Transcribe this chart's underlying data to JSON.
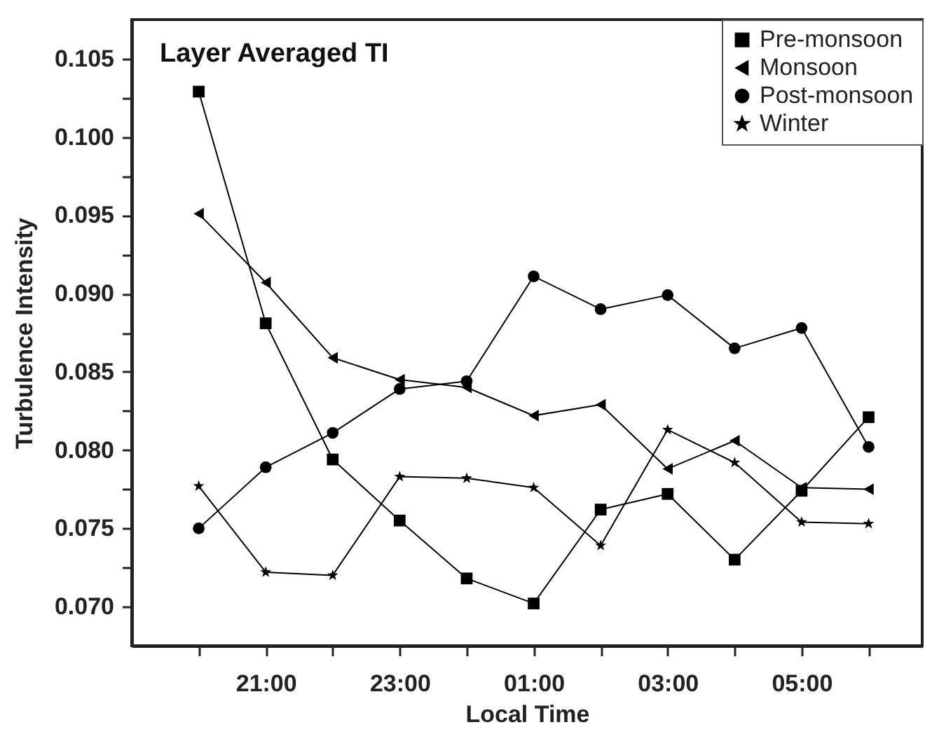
{
  "chart_data": {
    "type": "line",
    "title": "Layer Averaged TI",
    "xlabel": "Local Time",
    "ylabel": "Turbulence Intensity",
    "x": [
      "2000-01-01T20:00",
      "2000-01-01T21:00",
      "2000-01-01T22:00",
      "2000-01-01T23:00",
      "2000-01-02T00:00",
      "2000-01-02T01:00",
      "2000-01-02T02:00",
      "2000-01-02T03:00",
      "2000-01-02T04:00",
      "2000-01-02T05:00",
      "2000-01-02T06:00"
    ],
    "xlim": [
      "2000-01-01T19:00",
      "2000-01-02T06:48"
    ],
    "xticks": [
      {
        "value": "2000-01-01T20:00",
        "label": null
      },
      {
        "value": "2000-01-01T21:00",
        "label": "21:00"
      },
      {
        "value": "2000-01-01T22:00",
        "label": null
      },
      {
        "value": "2000-01-01T23:00",
        "label": "23:00"
      },
      {
        "value": "2000-01-02T00:00",
        "label": null
      },
      {
        "value": "2000-01-02T01:00",
        "label": "01:00"
      },
      {
        "value": "2000-01-02T02:00",
        "label": null
      },
      {
        "value": "2000-01-02T03:00",
        "label": "03:00"
      },
      {
        "value": "2000-01-02T04:00",
        "label": null
      },
      {
        "value": "2000-01-02T05:00",
        "label": "05:00"
      },
      {
        "value": "2000-01-02T06:00",
        "label": null
      }
    ],
    "ylim": [
      0.0675,
      0.1075
    ],
    "yticks": [
      {
        "value": 0.07,
        "label": "0.070"
      },
      {
        "value": 0.0725,
        "label": null
      },
      {
        "value": 0.075,
        "label": "0.075"
      },
      {
        "value": 0.0775,
        "label": null
      },
      {
        "value": 0.08,
        "label": "0.080"
      },
      {
        "value": 0.0825,
        "label": null
      },
      {
        "value": 0.085,
        "label": "0.085"
      },
      {
        "value": 0.0875,
        "label": null
      },
      {
        "value": 0.09,
        "label": "0.090"
      },
      {
        "value": 0.0925,
        "label": null
      },
      {
        "value": 0.095,
        "label": "0.095"
      },
      {
        "value": 0.0975,
        "label": null
      },
      {
        "value": 0.1,
        "label": "0.100"
      },
      {
        "value": 0.1025,
        "label": null
      },
      {
        "value": 0.105,
        "label": "0.105"
      }
    ],
    "legend": "top right",
    "grid": false,
    "line_style": "solid",
    "series": [
      {
        "name": "Pre-monsoon",
        "color": "#000000",
        "marker": "square",
        "values": [
          0.1029,
          0.0881,
          0.0794,
          0.0755,
          0.0718,
          0.0702,
          0.0762,
          0.0772,
          0.073,
          0.0774,
          0.0821
        ]
      },
      {
        "name": "Monsoon",
        "color": "#000000",
        "marker": "triangle",
        "values": [
          0.0951,
          0.0907,
          0.0859,
          0.0845,
          0.084,
          0.0822,
          0.0829,
          0.0788,
          0.0806,
          0.0776,
          0.0775
        ]
      },
      {
        "name": "Post-monsoon",
        "color": "#000000",
        "marker": "circle",
        "values": [
          0.075,
          0.0789,
          0.0811,
          0.0839,
          0.0844,
          0.0911,
          0.089,
          0.0899,
          0.0865,
          0.0878,
          0.0802
        ]
      },
      {
        "name": "Winter",
        "color": "#000000",
        "marker": "star",
        "values": [
          0.0777,
          0.0722,
          0.072,
          0.0783,
          0.0782,
          0.0776,
          0.0739,
          0.0813,
          0.0792,
          0.0754,
          0.0753
        ]
      }
    ]
  }
}
